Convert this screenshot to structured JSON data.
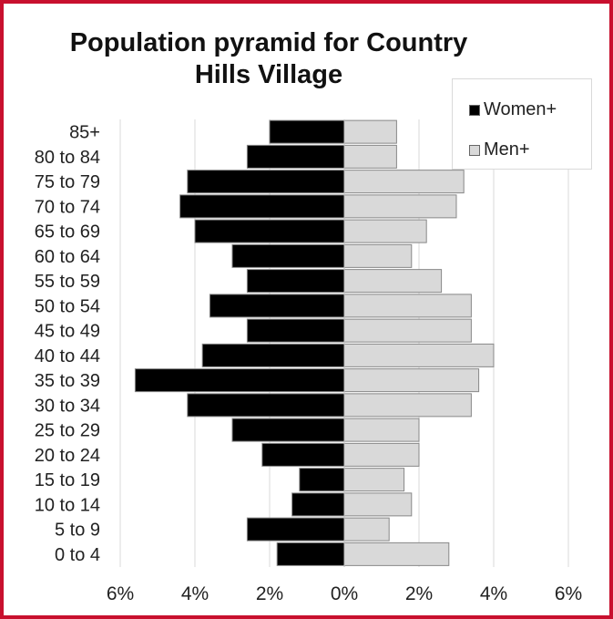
{
  "chart_data": {
    "type": "bar",
    "orientation": "horizontal-pyramid",
    "title": "Population pyramid for Country Hills Village",
    "categories": [
      "85+",
      "80 to 84",
      "75 to 79",
      "70 to 74",
      "65 to 69",
      "60 to 64",
      "55 to 59",
      "50 to 54",
      "45 to 49",
      "40 to 44",
      "35 to 39",
      "30 to 34",
      "25 to 29",
      "20 to 24",
      "15 to 19",
      "10 to 14",
      "5 to 9",
      "0 to 4"
    ],
    "series": [
      {
        "name": "Women+",
        "color": "#000000",
        "side": "left",
        "values": [
          2.0,
          2.6,
          4.2,
          4.4,
          4.0,
          3.0,
          2.6,
          3.6,
          2.6,
          3.8,
          5.6,
          4.2,
          3.0,
          2.2,
          1.2,
          1.4,
          2.6,
          1.8
        ]
      },
      {
        "name": "Men+",
        "color": "#d9d9d9",
        "side": "right",
        "values": [
          1.4,
          1.4,
          3.2,
          3.0,
          2.2,
          1.8,
          2.6,
          3.4,
          3.4,
          4.0,
          3.6,
          3.4,
          2.0,
          2.0,
          1.6,
          1.8,
          1.2,
          2.8
        ]
      }
    ],
    "xlim": [
      -6,
      6
    ],
    "x_ticks": [
      "6%",
      "4%",
      "2%",
      "0%",
      "2%",
      "4%",
      "6%"
    ],
    "x_tick_values": [
      -6,
      -4,
      -2,
      0,
      2,
      4,
      6
    ],
    "unit": "%",
    "grid": true,
    "legend_position": "top-right",
    "border_color": "#c8102e"
  }
}
